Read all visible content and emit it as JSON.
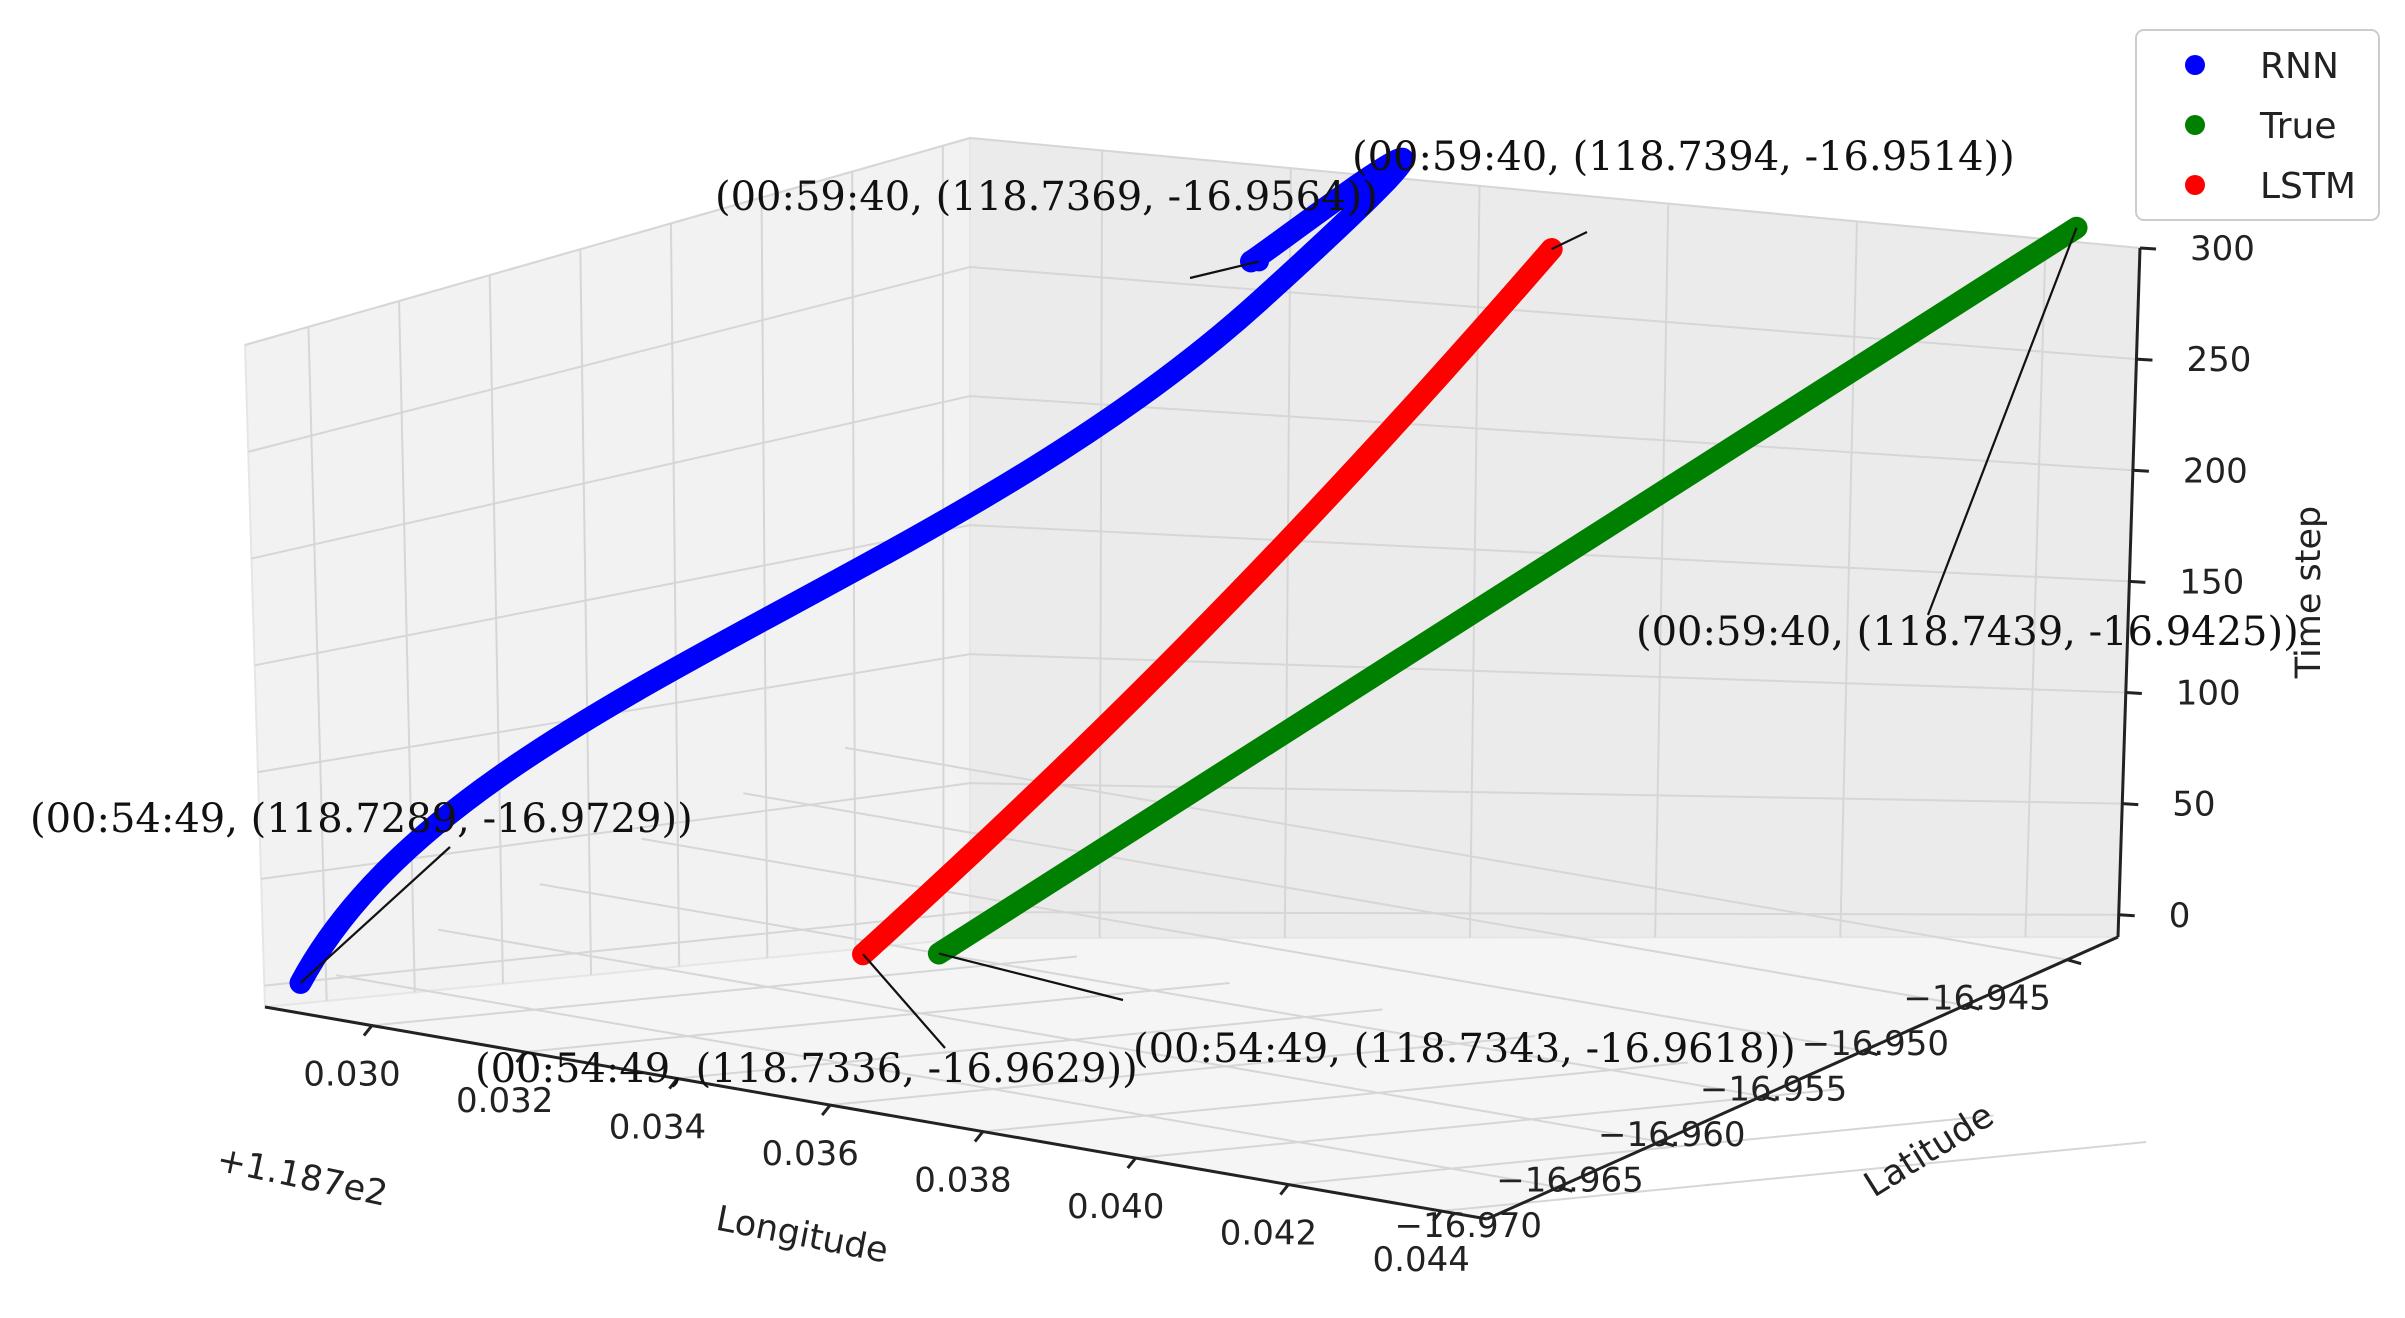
{
  "chart_data": {
    "type": "scatter",
    "projection": "3d",
    "xlabel": "Longitude",
    "ylabel": "Latitude",
    "zlabel": "Time step",
    "x_offset_text": "+1.187e2",
    "x_ticks": [
      "0.030",
      "0.032",
      "0.034",
      "0.036",
      "0.038",
      "0.040",
      "0.042",
      "0.044"
    ],
    "y_ticks": [
      "−16.970",
      "−16.965",
      "−16.960",
      "−16.955",
      "−16.950",
      "−16.945"
    ],
    "z_ticks": [
      "0",
      "50",
      "100",
      "150",
      "200",
      "250",
      "300"
    ],
    "xlim": [
      0.0286,
      0.0446
    ],
    "ylim": [
      -16.9735,
      -16.9425
    ],
    "zlim": [
      -10,
      300
    ],
    "grid": true,
    "legend": {
      "placement": "top-right",
      "entries": [
        "RNN",
        "True",
        "LSTM"
      ]
    },
    "series": [
      {
        "name": "RNN",
        "color": "#0000ff",
        "start": {
          "x": 0.0289,
          "y": -16.9729,
          "z": 0,
          "label": "(00:54:49, (118.7289, -16.9729))"
        },
        "end": {
          "x": 0.0369,
          "y": -16.9564,
          "z": 300,
          "label": "(00:59:40, (118.7369, -16.9564))"
        }
      },
      {
        "name": "True",
        "color": "#008000",
        "start": {
          "x": 0.0343,
          "y": -16.9618,
          "z": 0,
          "label": "(00:54:49, (118.7343, -16.9618))"
        },
        "end": {
          "x": 0.0439,
          "y": -16.9425,
          "z": 300,
          "label": "(00:59:40, (118.7439, -16.9425))"
        }
      },
      {
        "name": "LSTM",
        "color": "#ff0000",
        "start": {
          "x": 0.0336,
          "y": -16.9629,
          "z": 0,
          "label": "(00:54:49, (118.7336, -16.9629))"
        },
        "end": {
          "x": 0.0394,
          "y": -16.9514,
          "z": 300,
          "label": "(00:59:40, (118.7394, -16.9514))"
        }
      }
    ]
  }
}
